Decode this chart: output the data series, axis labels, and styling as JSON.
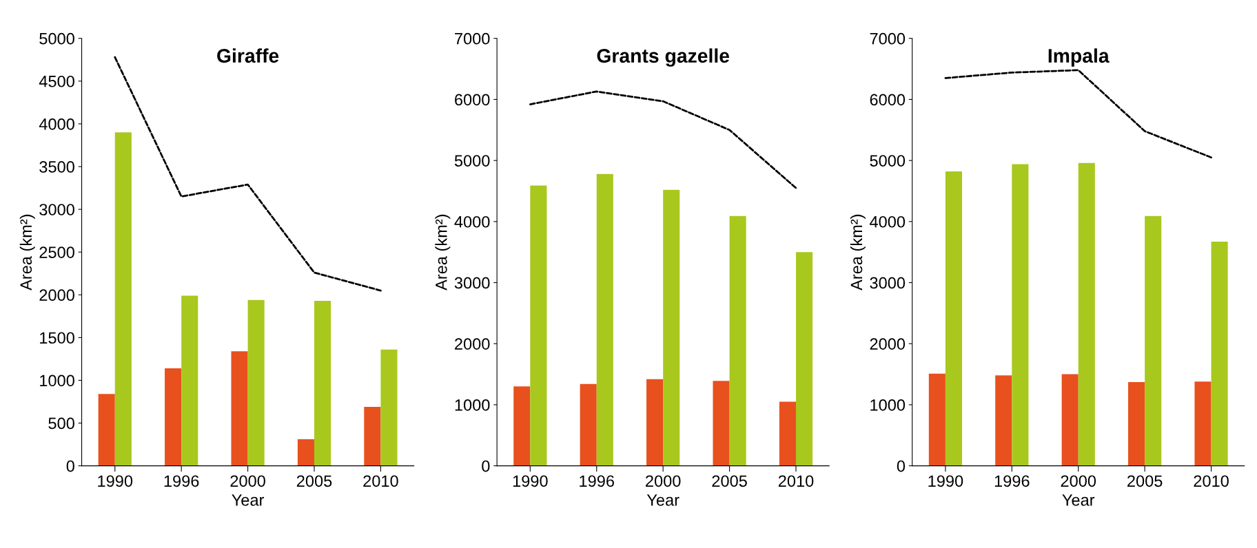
{
  "chart_data": [
    {
      "type": "bar",
      "title": "Giraffe",
      "xlabel": "Year",
      "ylabel": "Area (km²)",
      "categories": [
        "1990",
        "1996",
        "2000",
        "2005",
        "2010"
      ],
      "ylim": [
        0,
        5000
      ],
      "yticks": [
        0,
        500,
        1000,
        1500,
        2000,
        2500,
        3000,
        3500,
        4000,
        4500,
        5000
      ],
      "grid": false,
      "series": [
        {
          "color": "#e8501e",
          "values": [
            840,
            1140,
            1340,
            310,
            690
          ]
        },
        {
          "color": "#a8c81e",
          "values": [
            3900,
            1990,
            1940,
            1930,
            1360
          ]
        },
        {
          "type": "line",
          "color": "#000000",
          "line_style": "dashed",
          "marker": "none",
          "values": [
            4780,
            3150,
            3290,
            2260,
            2050
          ]
        }
      ]
    },
    {
      "type": "bar",
      "title": "Grants gazelle",
      "xlabel": "Year",
      "ylabel": "Area (km²)",
      "categories": [
        "1990",
        "1996",
        "2000",
        "2005",
        "2010"
      ],
      "ylim": [
        0,
        7000
      ],
      "yticks": [
        0,
        1000,
        2000,
        3000,
        4000,
        5000,
        6000,
        7000
      ],
      "grid": false,
      "series": [
        {
          "color": "#e8501e",
          "values": [
            1300,
            1340,
            1420,
            1390,
            1050
          ]
        },
        {
          "color": "#a8c81e",
          "values": [
            4590,
            4780,
            4520,
            4090,
            3500
          ]
        },
        {
          "type": "line",
          "color": "#000000",
          "line_style": "dashed",
          "marker": "none",
          "values": [
            5920,
            6130,
            5970,
            5500,
            4550
          ]
        }
      ]
    },
    {
      "type": "bar",
      "title": "Impala",
      "xlabel": "Year",
      "ylabel": "Area (km²)",
      "categories": [
        "1990",
        "1996",
        "2000",
        "2005",
        "2010"
      ],
      "ylim": [
        0,
        7000
      ],
      "yticks": [
        0,
        1000,
        2000,
        3000,
        4000,
        5000,
        6000,
        7000
      ],
      "grid": false,
      "series": [
        {
          "color": "#e8501e",
          "values": [
            1510,
            1480,
            1500,
            1370,
            1380
          ]
        },
        {
          "color": "#a8c81e",
          "values": [
            4820,
            4940,
            4960,
            4090,
            3670
          ]
        },
        {
          "type": "line",
          "color": "#000000",
          "line_style": "dashed",
          "marker": "none",
          "values": [
            6350,
            6440,
            6480,
            5480,
            5050
          ]
        }
      ]
    }
  ]
}
